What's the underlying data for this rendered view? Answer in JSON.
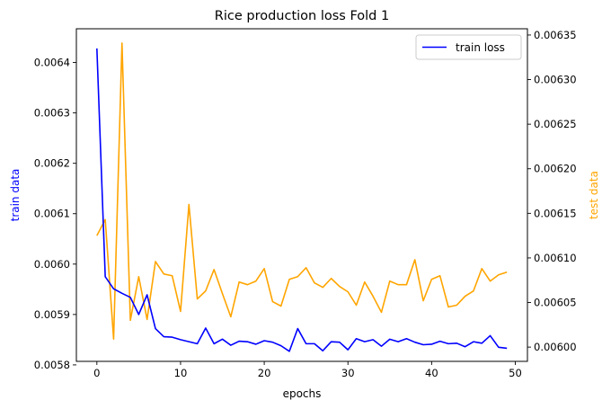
{
  "chart_data": {
    "type": "line",
    "title": "Rice production loss Fold 1",
    "xlabel": "epochs",
    "ylabel_left": "train data",
    "ylabel_right": "test data",
    "xlim": [
      -2.45,
      51.45
    ],
    "ylim_left": [
      0.005807,
      0.006467
    ],
    "ylim_right": [
      0.005984,
      0.006357
    ],
    "x_ticks": [
      0,
      10,
      20,
      30,
      40,
      50
    ],
    "y_left_ticks": [
      "0.0058",
      "0.0059",
      "0.0060",
      "0.0061",
      "0.0062",
      "0.0063",
      "0.0064"
    ],
    "y_right_ticks": [
      "0.00600",
      "0.00605",
      "0.00610",
      "0.00615",
      "0.00620",
      "0.00625",
      "0.00630",
      "0.00635"
    ],
    "legend": {
      "position": "top-right",
      "entries": [
        "train loss"
      ]
    },
    "grid": false,
    "colors": {
      "train": "#0000ff",
      "test": "#ffa500",
      "left_label": "#0000ff",
      "right_label": "#ffa500"
    },
    "x": [
      0,
      1,
      2,
      3,
      4,
      5,
      6,
      7,
      8,
      9,
      10,
      11,
      12,
      13,
      14,
      15,
      16,
      17,
      18,
      19,
      20,
      21,
      22,
      23,
      24,
      25,
      26,
      27,
      28,
      29,
      30,
      31,
      32,
      33,
      34,
      35,
      36,
      37,
      38,
      39,
      40,
      41,
      42,
      43,
      44,
      45,
      46,
      47,
      48,
      49
    ],
    "series": [
      {
        "name": "train loss",
        "axis": "left",
        "values": [
          0.006428,
          0.005975,
          0.005951,
          0.005942,
          0.005934,
          0.0059,
          0.005939,
          0.005872,
          0.005856,
          0.005855,
          0.00585,
          0.005846,
          0.005842,
          0.005873,
          0.005842,
          0.005851,
          0.005839,
          0.005847,
          0.005846,
          0.005841,
          0.005848,
          0.005845,
          0.005838,
          0.005827,
          0.005872,
          0.005842,
          0.005842,
          0.005828,
          0.005846,
          0.005845,
          0.00583,
          0.005852,
          0.005846,
          0.00585,
          0.005837,
          0.005851,
          0.005846,
          0.005852,
          0.005845,
          0.00584,
          0.005841,
          0.005847,
          0.005842,
          0.005843,
          0.005836,
          0.005846,
          0.005843,
          0.005858,
          0.005835,
          0.005833
        ]
      },
      {
        "axis": "right",
        "values": [
          0.006125,
          0.006143,
          0.006009,
          0.006341,
          0.00603,
          0.006079,
          0.006031,
          0.006096,
          0.006082,
          0.00608,
          0.00604,
          0.00616,
          0.006054,
          0.006063,
          0.006087,
          0.00606,
          0.006034,
          0.006073,
          0.00607,
          0.006074,
          0.006088,
          0.006051,
          0.006046,
          0.006076,
          0.006079,
          0.006089,
          0.006072,
          0.006067,
          0.006077,
          0.006068,
          0.006062,
          0.006047,
          0.006073,
          0.006057,
          0.006039,
          0.006074,
          0.00607,
          0.00607,
          0.006098,
          0.006052,
          0.006076,
          0.00608,
          0.006045,
          0.006047,
          0.006057,
          0.006063,
          0.006088,
          0.006074,
          0.006081,
          0.006084
        ]
      }
    ]
  }
}
